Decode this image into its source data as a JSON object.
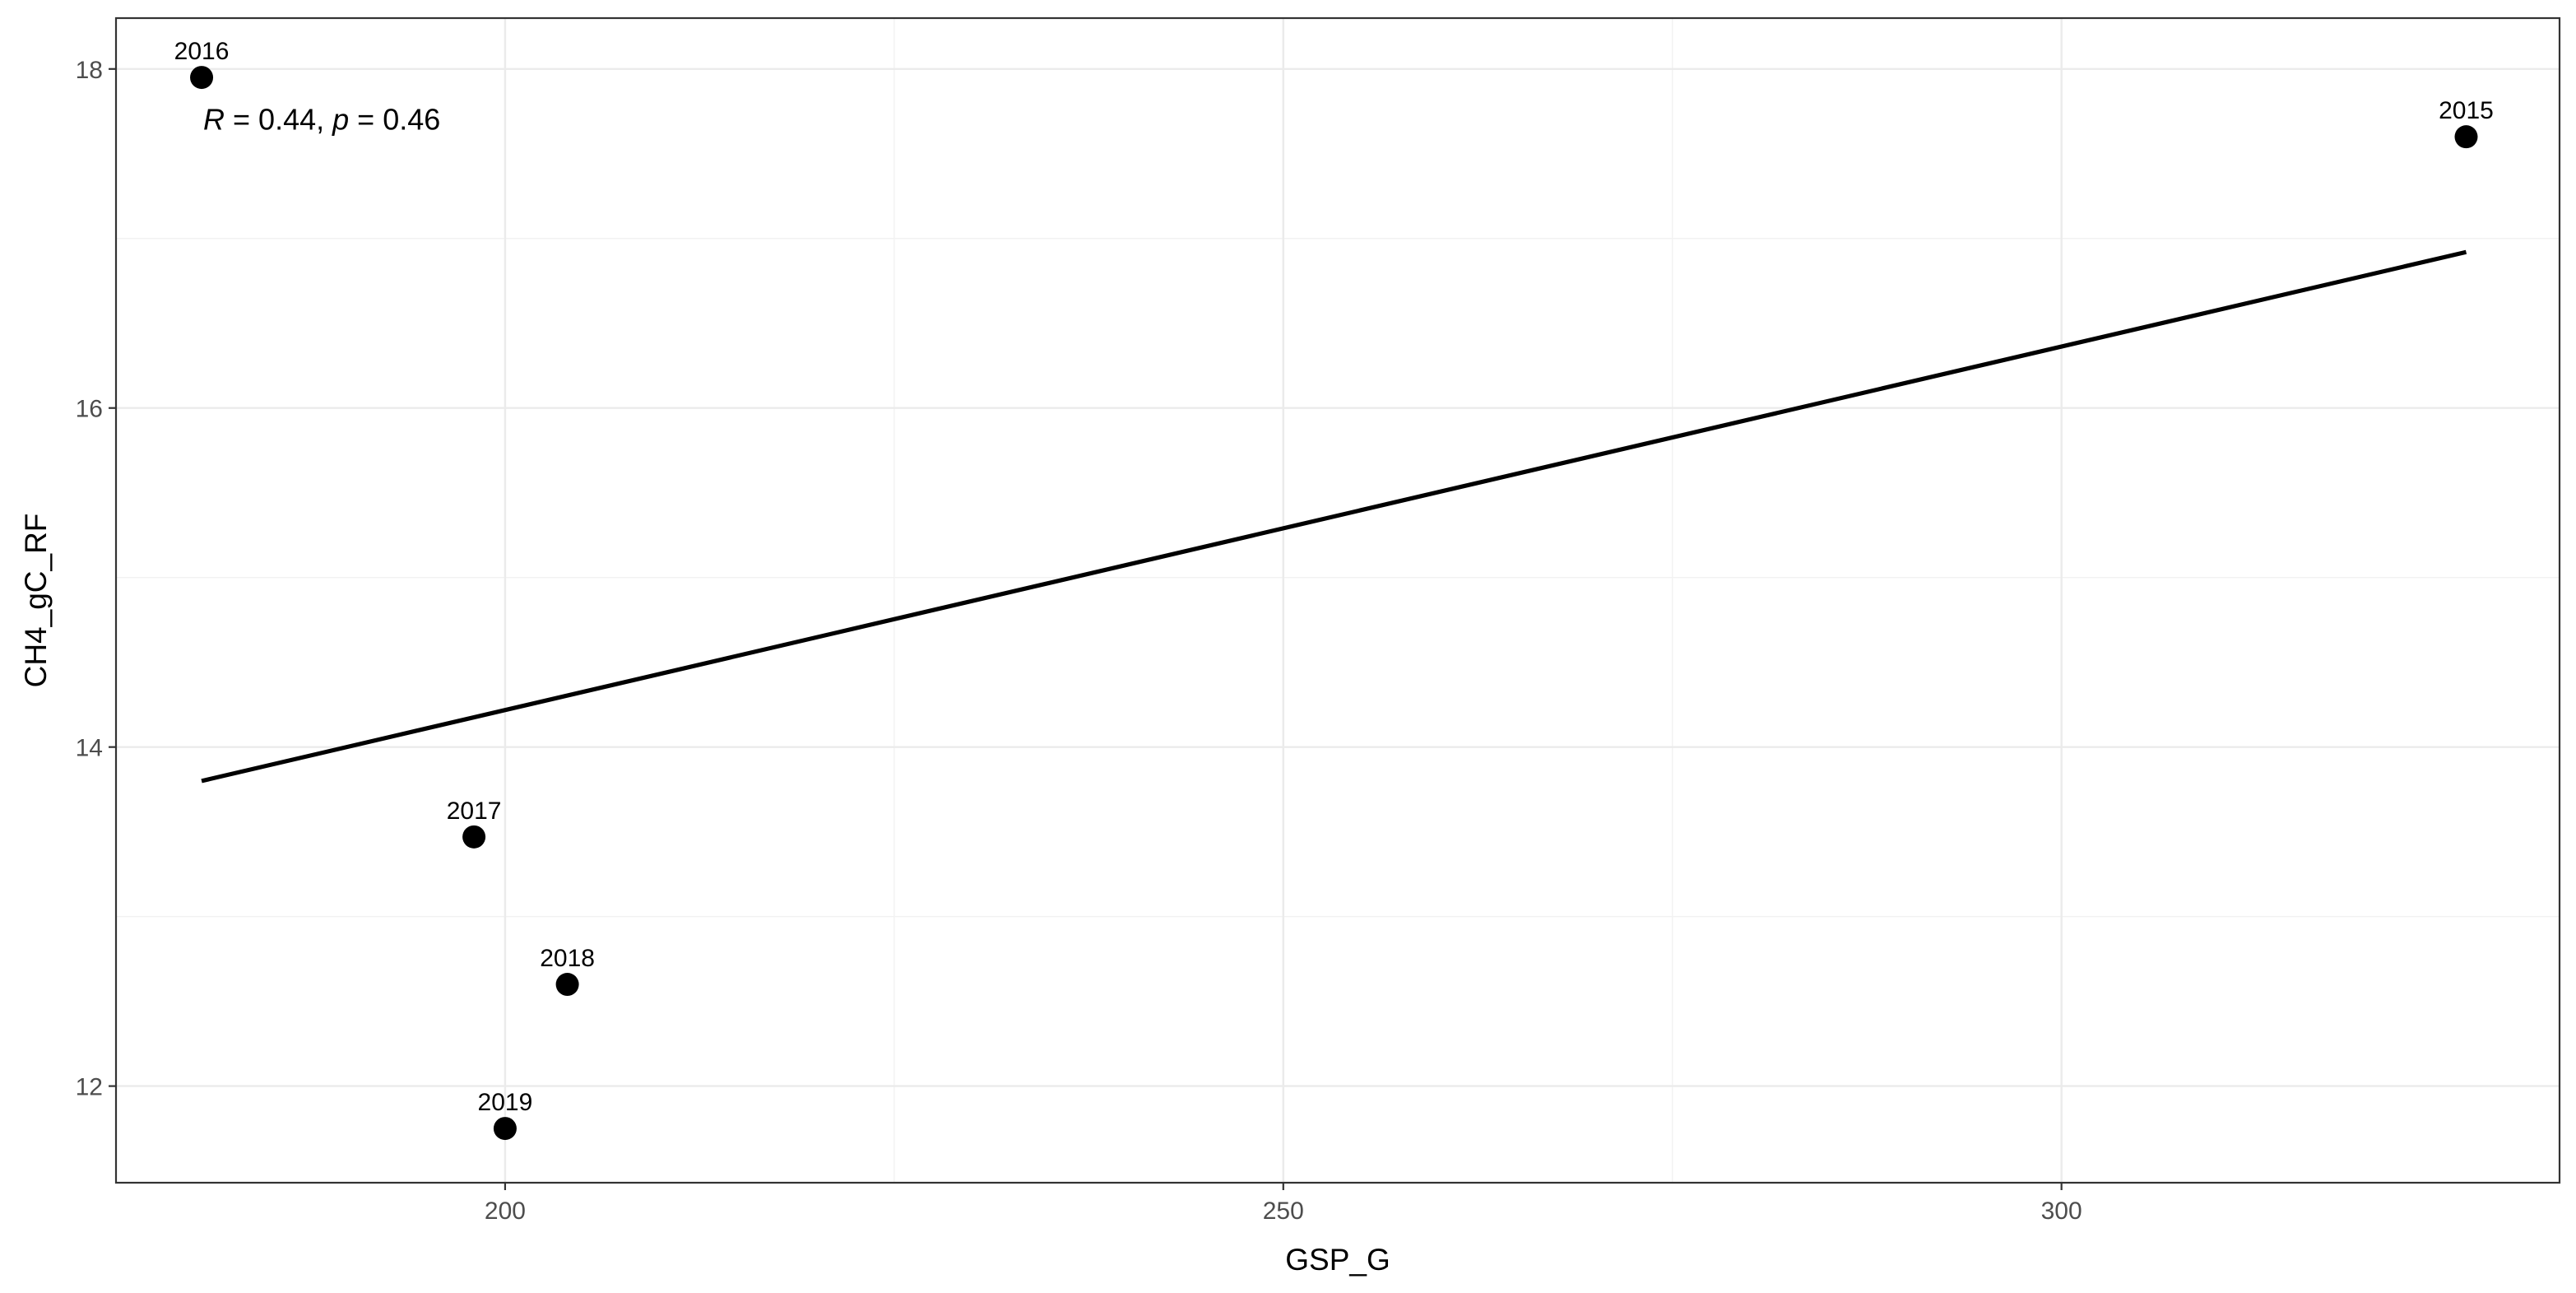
{
  "chart_data": {
    "type": "scatter",
    "title": "",
    "xlabel": "GSP_G",
    "ylabel": "CH4_gC_RF",
    "xlim": [
      175,
      332
    ],
    "ylim": [
      11.43,
      18.3
    ],
    "x_major_ticks": [
      200,
      250,
      300
    ],
    "x_minor_ticks": [
      225,
      275
    ],
    "y_major_ticks": [
      12,
      14,
      16,
      18
    ],
    "y_minor_ticks": [
      13,
      15,
      17
    ],
    "x_tick_labels": [
      "200",
      "250",
      "300"
    ],
    "y_tick_labels": [
      "12",
      "14",
      "16",
      "18"
    ],
    "grid": true,
    "legend": "none",
    "points": [
      {
        "label": "2015",
        "x": 326,
        "y": 17.6
      },
      {
        "label": "2016",
        "x": 180.5,
        "y": 17.95
      },
      {
        "label": "2017",
        "x": 198,
        "y": 13.47
      },
      {
        "label": "2018",
        "x": 204,
        "y": 12.6
      },
      {
        "label": "2019",
        "x": 200,
        "y": 11.75
      }
    ],
    "regression_line": {
      "x": [
        180.5,
        326
      ],
      "y": [
        13.8,
        16.92
      ]
    },
    "annotation": {
      "r_symbol": "R",
      "r_text": " = 0.44, ",
      "p_symbol": "p",
      "p_text": " = 0.46",
      "x": 180.5,
      "y": 17.75
    },
    "colors": {
      "points": "#000000",
      "line": "#000000",
      "panel_border": "#333333",
      "grid": "#ebebeb",
      "tick_text": "#4d4d4d"
    }
  }
}
